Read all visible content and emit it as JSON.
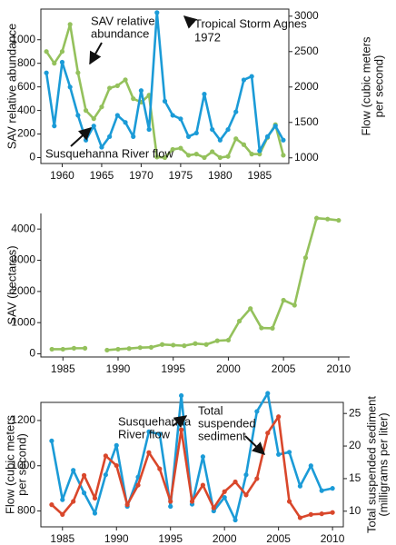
{
  "chart_data": [
    {
      "type": "line",
      "xlim": [
        1957.3,
        1988.7
      ],
      "xticks": [
        1960,
        1965,
        1970,
        1975,
        1980,
        1985
      ],
      "ylim": [
        -50,
        1260
      ],
      "yticks": [
        0,
        200,
        400,
        600,
        800,
        1000
      ],
      "y2lim": [
        920,
        3100
      ],
      "y2ticks": [
        1000,
        1500,
        2000,
        2500,
        3000
      ],
      "ylabel": "SAV relative abundance",
      "y2label": [
        "Flow (cubic meters",
        "per second)"
      ],
      "annotations": [
        [
          "SAV relative",
          "abundance"
        ],
        [
          "Susquehanna River flow"
        ],
        [
          "Tropical Storm Agnes",
          "1972"
        ]
      ],
      "x": [
        1958,
        1959,
        1960,
        1961,
        1962,
        1963,
        1964,
        1965,
        1966,
        1967,
        1968,
        1969,
        1970,
        1971,
        1972,
        1973,
        1974,
        1975,
        1976,
        1977,
        1978,
        1979,
        1980,
        1981,
        1982,
        1983,
        1984,
        1985,
        1986,
        1987,
        1988
      ],
      "series": [
        {
          "color": "#94c15c",
          "values": [
            900,
            800,
            900,
            1130,
            720,
            400,
            330,
            430,
            590,
            610,
            660,
            500,
            470,
            530,
            5,
            0,
            70,
            80,
            20,
            30,
            0,
            50,
            0,
            10,
            160,
            110,
            30,
            30,
            170,
            280,
            20
          ]
        },
        {
          "color": "#1b9bd7",
          "axis": "y2",
          "values": [
            2200,
            1450,
            2350,
            2000,
            1600,
            1250,
            1450,
            1150,
            1300,
            1600,
            1500,
            1300,
            1950,
            1400,
            3050,
            1800,
            1600,
            1550,
            1300,
            1350,
            1900,
            1400,
            1250,
            1400,
            1650,
            2100,
            2150,
            1100,
            1300,
            1450,
            1250
          ]
        }
      ]
    },
    {
      "type": "line",
      "xlim": [
        1983,
        2011
      ],
      "xticks": [
        1985,
        1990,
        1995,
        2000,
        2005,
        2010
      ],
      "ylim": [
        -100,
        4500
      ],
      "yticks": [
        0,
        1000,
        2000,
        3000,
        4000
      ],
      "ylabel": "SAV (hectares)",
      "x": [
        1984,
        1985,
        1986,
        1987,
        1988,
        1989,
        1990,
        1991,
        1992,
        1993,
        1994,
        1995,
        1996,
        1997,
        1998,
        1999,
        2000,
        2001,
        2002,
        2003,
        2004,
        2005,
        2006,
        2007,
        2008,
        2009,
        2010
      ],
      "series": [
        {
          "color": "#94c15c",
          "values": [
            150,
            150,
            180,
            180,
            null,
            120,
            150,
            170,
            200,
            210,
            300,
            280,
            260,
            330,
            300,
            420,
            440,
            1050,
            1450,
            830,
            820,
            1720,
            1560,
            3080,
            4350,
            4320,
            4280
          ]
        }
      ]
    },
    {
      "type": "line",
      "xlim": [
        1983,
        2011
      ],
      "xticks": [
        1985,
        1990,
        1995,
        2000,
        2005,
        2010
      ],
      "ylim": [
        730,
        1280
      ],
      "yticks": [
        800,
        1000,
        1200
      ],
      "y2lim": [
        7.6,
        26.7
      ],
      "y2ticks": [
        10,
        15,
        20,
        25
      ],
      "ylabel": [
        "Flow (cubic meters",
        "per second)"
      ],
      "y2label": [
        "Total suspended sediment",
        "(milligrams per liter)"
      ],
      "annotations": [
        [
          "Susquehanna",
          "River flow"
        ],
        [
          "Total",
          "suspended",
          "sediment"
        ]
      ],
      "x": [
        1984,
        1985,
        1986,
        1987,
        1988,
        1989,
        1990,
        1991,
        1992,
        1993,
        1994,
        1995,
        1996,
        1997,
        1998,
        1999,
        2000,
        2001,
        2002,
        2003,
        2004,
        2005,
        2006,
        2007,
        2008,
        2009,
        2010
      ],
      "series": [
        {
          "color": "#1b9bd7",
          "values": [
            1110,
            850,
            980,
            880,
            790,
            960,
            1090,
            820,
            950,
            1150,
            1140,
            820,
            1310,
            830,
            1040,
            800,
            860,
            760,
            960,
            1240,
            1320,
            1050,
            1060,
            910,
            1000,
            890,
            900
          ]
        },
        {
          "color": "#d9472b",
          "axis": "y2",
          "values": [
            11,
            9.5,
            11.5,
            15.5,
            12,
            18.5,
            17,
            11,
            14,
            19,
            16.5,
            11.5,
            22.5,
            11.5,
            14,
            10.5,
            13,
            14.5,
            12.5,
            15,
            22,
            24.5,
            11.5,
            9,
            9.5,
            9.6,
            9.8
          ]
        }
      ]
    }
  ]
}
